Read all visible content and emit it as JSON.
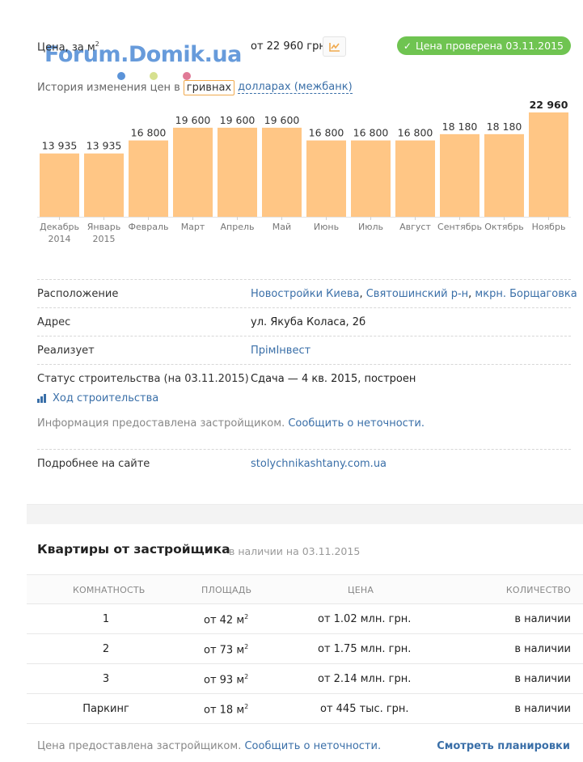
{
  "price": {
    "label": "Цена, за м",
    "label_sup": "2",
    "value": "от 22 960 грн.",
    "chart_button_icon": "line-chart-icon",
    "verified_text": "Цена проверена 03.11.2015"
  },
  "watermark": {
    "text": "Forum.Domik.ua",
    "color": "#5b93d8",
    "dot_colors": [
      "#5b93d8",
      "#d6e08f",
      "#e07a96"
    ]
  },
  "history": {
    "label": "История изменения цен в",
    "active_currency": "гривнах",
    "other_currency": "долларах (межбанк)"
  },
  "chart_data": {
    "type": "bar",
    "bar_color": "#ffc685",
    "categories": [
      "Декабрь 2014",
      "Январь 2015",
      "Февраль",
      "Март",
      "Апрель",
      "Май",
      "Июнь",
      "Июль",
      "Август",
      "Сентябрь",
      "Октябрь",
      "Ноябрь"
    ],
    "tick_labels": [
      [
        "Декабрь",
        "2014"
      ],
      [
        "Январь",
        "2015"
      ],
      [
        "Февраль"
      ],
      [
        "Март"
      ],
      [
        "Апрель"
      ],
      [
        "Май"
      ],
      [
        "Июнь"
      ],
      [
        "Июль"
      ],
      [
        "Август"
      ],
      [
        "Сентябрь"
      ],
      [
        "Октябрь"
      ],
      [
        "Ноябрь"
      ]
    ],
    "values": [
      13935,
      13935,
      16800,
      19600,
      19600,
      19600,
      16800,
      16800,
      16800,
      18180,
      18180,
      22960
    ],
    "value_labels": [
      "13 935",
      "13 935",
      "16 800",
      "19 600",
      "19 600",
      "19 600",
      "16 800",
      "16 800",
      "16 800",
      "18 180",
      "18 180",
      "22 960"
    ],
    "highlight_last": true,
    "ylim": [
      0,
      22960
    ]
  },
  "info": {
    "location_label": "Расположение",
    "location_links": [
      "Новостройки Киева",
      "Святошинский р-н",
      "мкрн. Борщаговка"
    ],
    "address_label": "Адрес",
    "address_value": "ул. Якуба Коласа, 2б",
    "seller_label": "Реализует",
    "seller_value": "ПрімІнвест",
    "status_label": "Статус строительства (на 03.11.2015)",
    "status_value": "Сдача — 4 кв. 2015, построен",
    "progress_link": "Ход строительства",
    "info_note": "Информация предоставлена застройщиком.",
    "report_link": "Сообщить о неточности.",
    "site_label": "Подробнее на сайте",
    "site_value": "stolychnikashtany.com.ua"
  },
  "apartments": {
    "title": "Квартиры от застройщика",
    "subtitle": "в наличии на 03.11.2015",
    "columns": [
      "КОМНАТНОСТЬ",
      "ПЛОЩАДЬ",
      "ЦЕНА",
      "КОЛИЧЕСТВО"
    ],
    "rows": [
      {
        "rooms": "1",
        "area": "от 42 м",
        "price": "от 1.02 млн. грн.",
        "qty": "в наличии"
      },
      {
        "rooms": "2",
        "area": "от 73 м",
        "price": "от 1.75 млн. грн.",
        "qty": "в наличии"
      },
      {
        "rooms": "3",
        "area": "от 93 м",
        "price": "от 2.14 млн. грн.",
        "qty": "в наличии"
      },
      {
        "rooms": "Паркинг",
        "area": "от 18 м",
        "price": "от 445 тыс. грн.",
        "qty": "в наличии"
      }
    ],
    "area_sup": "2",
    "footer_note": "Цена предоставлена застройщиком.",
    "footer_report": "Сообщить о неточности.",
    "footer_link": "Смотреть планировки"
  }
}
